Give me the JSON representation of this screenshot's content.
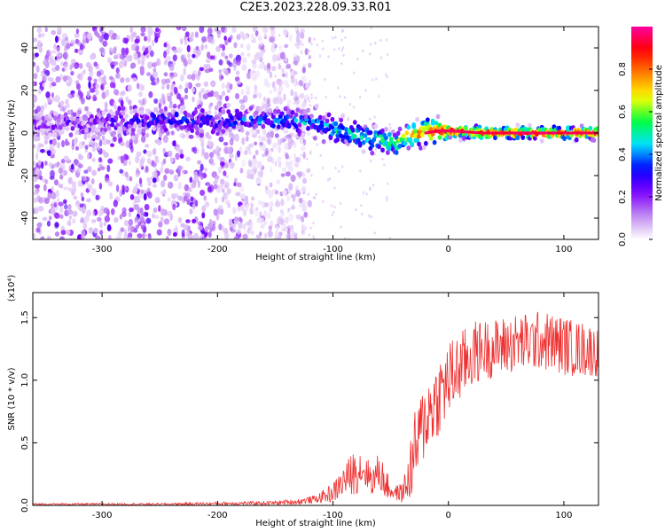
{
  "title": "C2E3.2023.228.09.33.R01",
  "chart_data": [
    {
      "type": "heatmap",
      "title": "C2E3.2023.228.09.33.R01",
      "xlabel": "Height of straight line (km)",
      "ylabel": "Frequency (Hz)",
      "xlim": [
        -360,
        130
      ],
      "ylim": [
        -50,
        50
      ],
      "xticks": [
        -300,
        -200,
        -100,
        0,
        100
      ],
      "yticks": [
        -40,
        -20,
        0,
        20,
        40
      ],
      "colorbar": {
        "label": "Normalized spectral amplitude",
        "range": [
          0,
          1
        ],
        "ticks": [
          "0.0",
          "0.2",
          "0.4",
          "0.6",
          "0.8"
        ],
        "tick_values": [
          0,
          0.2,
          0.4,
          0.6,
          0.8
        ],
        "colors": [
          "#ffffff",
          "#c08af0",
          "#8000ff",
          "#0000ff",
          "#00e0ff",
          "#00ff40",
          "#ffff00",
          "#ff8000",
          "#ff0000",
          "#ff00a0"
        ]
      },
      "ridge": {
        "x": [
          -360,
          -300,
          -250,
          -200,
          -150,
          -120,
          -100,
          -80,
          -60,
          -45,
          -35,
          -20,
          -10,
          0,
          30,
          60,
          90,
          130
        ],
        "y": [
          5,
          5,
          6,
          6,
          6,
          5,
          2,
          -1,
          -3,
          -5,
          -1,
          0,
          1,
          1,
          0,
          0,
          0,
          0
        ],
        "amplitude": [
          0.15,
          0.2,
          0.3,
          0.3,
          0.35,
          0.4,
          0.45,
          0.5,
          0.55,
          0.6,
          0.75,
          0.85,
          0.9,
          0.9,
          0.9,
          0.9,
          0.9,
          0.9
        ]
      },
      "noise_region_xmax": -130
    },
    {
      "type": "line",
      "xlabel": "Height of straight line (km)",
      "ylabel": "SNR (10 * v/v)",
      "y_multiplier": "(x10⁴)",
      "xlim": [
        -360,
        130
      ],
      "ylim": [
        0,
        1.7
      ],
      "xticks": [
        -300,
        -200,
        -100,
        0,
        100
      ],
      "yticks": [
        "0.0",
        "0.5",
        "1.0",
        "1.5"
      ],
      "ytick_values": [
        0,
        0.5,
        1.0,
        1.5
      ],
      "series": [
        {
          "name": "SNR",
          "color": "#ee3030",
          "x": [
            -360,
            -300,
            -250,
            -200,
            -150,
            -130,
            -115,
            -100,
            -90,
            -80,
            -75,
            -70,
            -65,
            -60,
            -55,
            -50,
            -45,
            -40,
            -35,
            -30,
            -25,
            -20,
            -10,
            0,
            10,
            20,
            30,
            40,
            50,
            60,
            70,
            80,
            90,
            100,
            110,
            120,
            130
          ],
          "y": [
            0.01,
            0.01,
            0.01,
            0.015,
            0.02,
            0.03,
            0.05,
            0.1,
            0.2,
            0.28,
            0.3,
            0.25,
            0.2,
            0.28,
            0.18,
            0.12,
            0.1,
            0.1,
            0.2,
            0.4,
            0.55,
            0.7,
            0.85,
            1.0,
            1.1,
            1.2,
            1.25,
            1.25,
            1.28,
            1.3,
            1.3,
            1.32,
            1.3,
            1.28,
            1.25,
            1.25,
            1.22
          ],
          "spread": [
            0.005,
            0.005,
            0.005,
            0.008,
            0.01,
            0.015,
            0.02,
            0.05,
            0.08,
            0.12,
            0.1,
            0.08,
            0.08,
            0.1,
            0.08,
            0.05,
            0.04,
            0.05,
            0.12,
            0.2,
            0.2,
            0.2,
            0.2,
            0.2,
            0.18,
            0.17,
            0.15,
            0.15,
            0.15,
            0.15,
            0.15,
            0.15,
            0.15,
            0.15,
            0.14,
            0.14,
            0.12
          ]
        }
      ]
    }
  ]
}
